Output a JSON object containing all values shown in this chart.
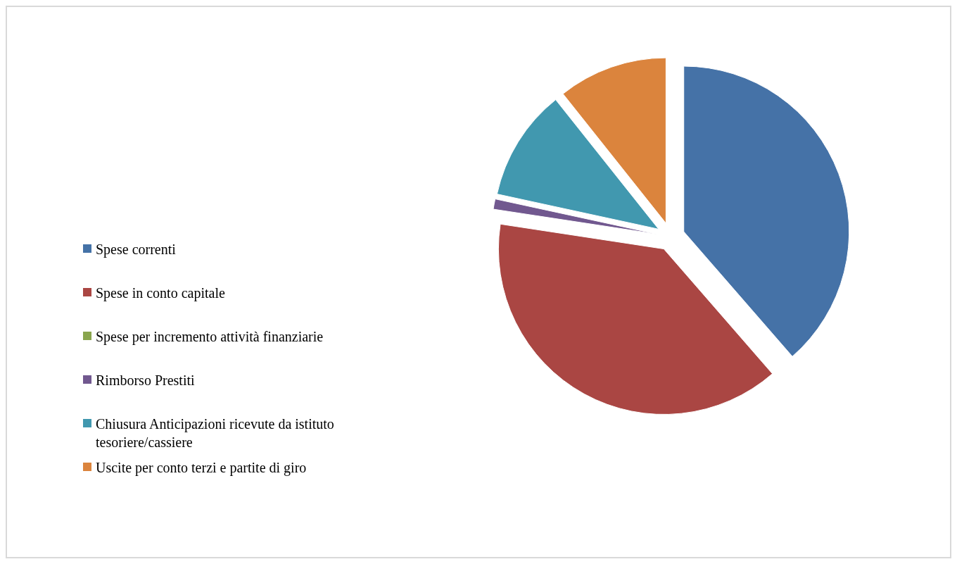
{
  "chart_data": {
    "type": "pie",
    "categories": [
      "Spese correnti",
      "Spese in conto capitale",
      "Spese per incremento attività finanziarie",
      "Rimborso Prestiti",
      "Chiusura Anticipazioni ricevute da istituto tesoriere/cassiere",
      "Uscite per conto terzi e partite di giro"
    ],
    "values": [
      38.6,
      38.8,
      0,
      1.0,
      10.9,
      10.7
    ],
    "colors": [
      "#4572a7",
      "#aa4643",
      "#89a54e",
      "#71588f",
      "#4198af",
      "#db843d"
    ],
    "legend": "left"
  }
}
